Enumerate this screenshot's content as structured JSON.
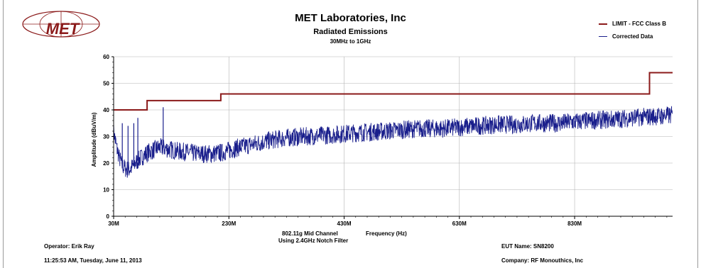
{
  "header": {
    "logo_text": "MET",
    "title": "MET Laboratories, Inc",
    "subtitle": "Radiated Emissions",
    "range_label": "30MHz to 1GHz"
  },
  "colors": {
    "limit": "#8b1a1a",
    "data": "#1a1f8c",
    "grid": "#b4b4b4"
  },
  "chart_data": {
    "type": "line",
    "ylabel": "Amplitude (dBuV/m)",
    "xlabel": "Frequency (Hz)",
    "x_note_1": "802.11g Mid Channel",
    "x_note_2": "Using 2.4GHz Notch Filter",
    "xlim": [
      30,
      1000
    ],
    "ylim": [
      0,
      60
    ],
    "x_ticks": [
      30,
      230,
      430,
      630,
      830
    ],
    "x_tick_labels": [
      "30M",
      "230M",
      "430M",
      "630M",
      "830M"
    ],
    "y_ticks": [
      0,
      10,
      20,
      30,
      40,
      50,
      60
    ],
    "y_tick_labels": [
      "0",
      "10",
      "20",
      "30",
      "40",
      "50",
      "60"
    ],
    "grid": true,
    "legend_position": "top-right",
    "series": [
      {
        "name": "LIMIT - FCC Class B",
        "step": true,
        "x": [
          30,
          88,
          88,
          216,
          216,
          960,
          960,
          1000
        ],
        "y": [
          40,
          40,
          43.5,
          43.5,
          46,
          46,
          54,
          54
        ]
      },
      {
        "name": "Corrected Data",
        "noise_band": 3.5,
        "x": [
          30,
          35,
          40,
          45,
          50,
          55,
          60,
          70,
          80,
          90,
          100,
          110,
          120,
          140,
          160,
          180,
          200,
          220,
          240,
          260,
          280,
          300,
          330,
          360,
          400,
          430,
          460,
          500,
          530,
          560,
          600,
          630,
          660,
          700,
          730,
          760,
          800,
          830,
          860,
          900,
          930,
          960,
          1000
        ],
        "y": [
          32,
          26,
          22,
          19,
          18,
          17.5,
          18,
          20.5,
          22.5,
          24,
          25,
          26,
          25.5,
          24.5,
          24,
          23.5,
          23.5,
          24,
          25.5,
          26.5,
          27.5,
          28.5,
          29.5,
          30,
          30.5,
          31,
          31.5,
          32,
          32.5,
          33,
          33,
          33.5,
          34,
          34.5,
          34.5,
          35,
          35,
          35.5,
          36,
          36.5,
          37,
          37.5,
          38
        ],
        "spikes": [
          [
            45,
            35
          ],
          [
            55,
            34
          ],
          [
            65,
            35
          ],
          [
            72,
            37
          ],
          [
            116,
            41
          ]
        ]
      }
    ]
  },
  "footer": {
    "operator": "Operator: Erik Ray",
    "timestamp": "11:25:53 AM, Tuesday, June 11, 2013",
    "eut": "EUT Name: SN8200",
    "company": "Company: RF Monouthics, Inc"
  }
}
